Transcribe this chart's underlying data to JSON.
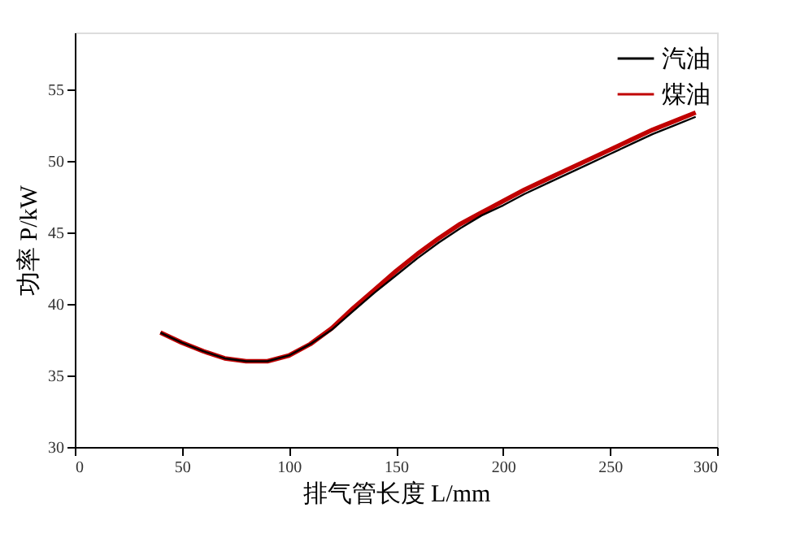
{
  "chart_data": {
    "type": "line",
    "xlabel": "排气管长度 L/mm",
    "ylabel": "功率 P/kW",
    "x": [
      40,
      50,
      60,
      70,
      80,
      90,
      100,
      110,
      120,
      130,
      140,
      150,
      160,
      170,
      180,
      190,
      200,
      210,
      220,
      230,
      240,
      250,
      260,
      270,
      280,
      290
    ],
    "series": [
      {
        "name": "汽油",
        "color": "#000000",
        "values": [
          38.0,
          37.3,
          36.7,
          36.2,
          36.0,
          36.0,
          36.4,
          37.2,
          38.2,
          39.5,
          40.8,
          42.0,
          43.2,
          44.3,
          45.3,
          46.2,
          46.9,
          47.7,
          48.4,
          49.1,
          49.8,
          50.5,
          51.2,
          51.9,
          52.5,
          53.1
        ]
      },
      {
        "name": "煤油",
        "color": "#c00000",
        "values": [
          38.0,
          37.3,
          36.7,
          36.2,
          36.0,
          36.0,
          36.4,
          37.2,
          38.3,
          39.7,
          41.0,
          42.3,
          43.5,
          44.6,
          45.6,
          46.4,
          47.2,
          48.0,
          48.7,
          49.4,
          50.1,
          50.8,
          51.5,
          52.2,
          52.8,
          53.4
        ]
      }
    ],
    "xlim": [
      0,
      300
    ],
    "xticks": [
      0,
      50,
      100,
      150,
      200,
      250,
      300
    ],
    "ylim": [
      30,
      59
    ],
    "yticks": [
      30,
      35,
      40,
      45,
      50,
      55
    ],
    "grid": false,
    "legend": "top right",
    "marker": "none",
    "line_style": "solid"
  }
}
